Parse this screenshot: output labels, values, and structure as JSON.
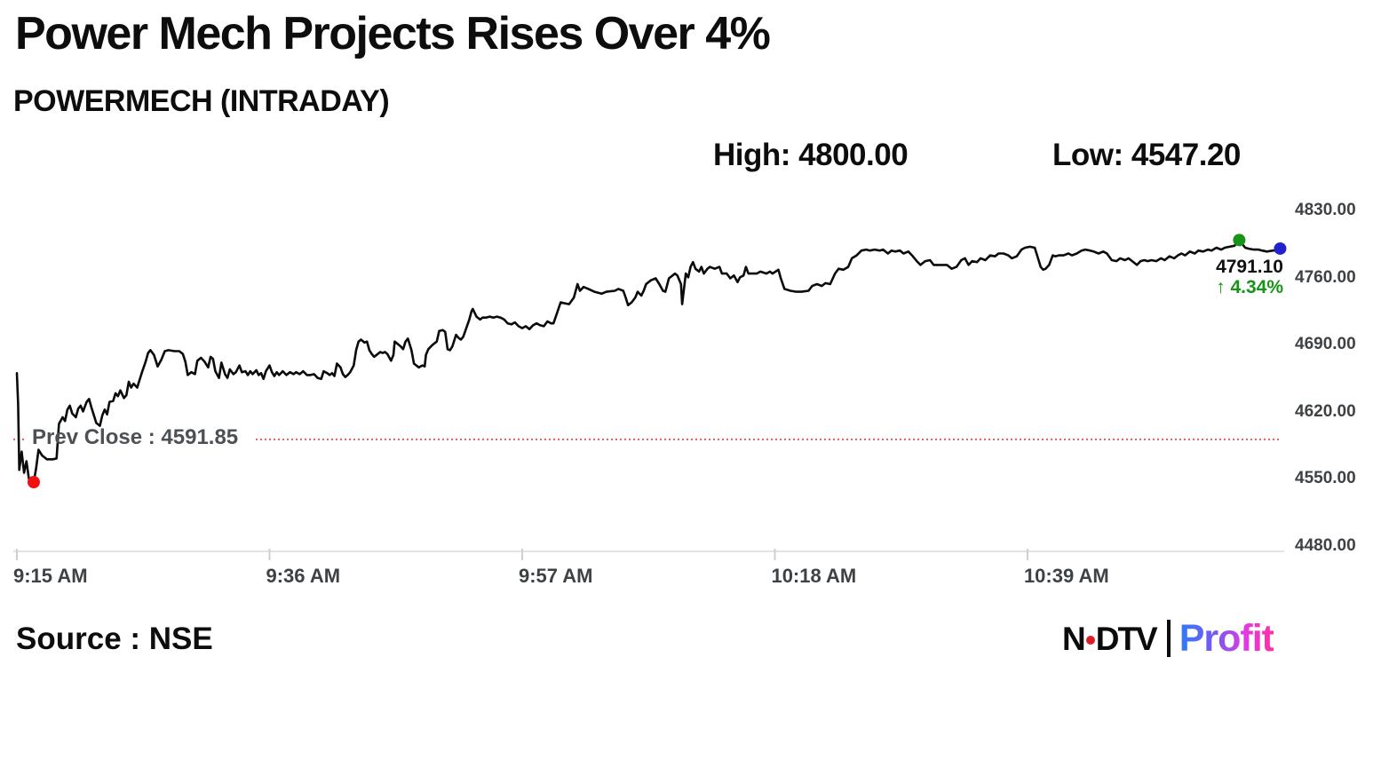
{
  "header": {
    "title": "Power Mech Projects Rises Over 4%",
    "subtitle": "POWERMECH (INTRADAY)",
    "high_label": "High: 4800.00",
    "low_label": "Low: 4547.20"
  },
  "footer": {
    "source": "Source : NSE",
    "logo": {
      "ndtv_n": "N",
      "ndtv_dtv": "DTV",
      "profit": "Profit"
    }
  },
  "colors": {
    "line": "#0b0b0b",
    "prev_close_line": "#e06060",
    "axis_line": "#e4e4e4",
    "tick": "#cfcfcf",
    "axis_text": "#3e4245",
    "low_dot": "#f21111",
    "high_dot": "#179417",
    "last_dot": "#2222cc",
    "change_green": "#179417"
  },
  "chart_data": {
    "type": "line",
    "title": "POWERMECH (INTRADAY)",
    "high": 4800.0,
    "low": 4547.2,
    "last": 4791.1,
    "last_label": "4791.10",
    "change_label": "↑ 4.34%",
    "prev_close": {
      "value": 4591.85,
      "label": "Prev Close : 4591.85"
    },
    "grid": false,
    "x_axis": {
      "unit": "minutes after 9:15 AM",
      "range_minutes": [
        0,
        105.5
      ],
      "ticks": [
        {
          "minutes": 0,
          "label": "9:15 AM"
        },
        {
          "minutes": 21,
          "label": "9:36 AM"
        },
        {
          "minutes": 42,
          "label": "9:57 AM"
        },
        {
          "minutes": 63,
          "label": "10:18 AM"
        },
        {
          "minutes": 84,
          "label": "10:39 AM"
        }
      ]
    },
    "y_axis": {
      "range": [
        4480,
        4830
      ],
      "ticks": [
        {
          "value": 4830,
          "label": "4830.00"
        },
        {
          "value": 4760,
          "label": "4760.00"
        },
        {
          "value": 4690,
          "label": "4690.00"
        },
        {
          "value": 4620,
          "label": "4620.00"
        },
        {
          "value": 4550,
          "label": "4550.00"
        },
        {
          "value": 4480,
          "label": "4480.00"
        }
      ]
    },
    "markers": {
      "low": {
        "minutes": 1.4,
        "price": 4547.2,
        "color_key": "low_dot"
      },
      "high": {
        "minutes": 101.6,
        "price": 4800.0,
        "color_key": "high_dot"
      },
      "last": {
        "minutes": 105.0,
        "price": 4791.1,
        "color_key": "last_dot"
      }
    },
    "series": [
      [
        0,
        4661
      ],
      [
        0.1,
        4629
      ],
      [
        0.2,
        4560
      ],
      [
        0.4,
        4579
      ],
      [
        0.6,
        4557
      ],
      [
        0.8,
        4569
      ],
      [
        1,
        4551
      ],
      [
        1.3,
        4545
      ],
      [
        1.4,
        4547.2
      ],
      [
        1.6,
        4562
      ],
      [
        1.8,
        4581
      ],
      [
        2.1,
        4575
      ],
      [
        2.5,
        4571
      ],
      [
        3,
        4571
      ],
      [
        3.3,
        4572
      ],
      [
        3.5,
        4608
      ],
      [
        3.8,
        4615
      ],
      [
        4,
        4611
      ],
      [
        4.2,
        4623
      ],
      [
        4.4,
        4627
      ],
      [
        4.6,
        4619
      ],
      [
        4.9,
        4615
      ],
      [
        5.1,
        4624
      ],
      [
        5.3,
        4627
      ],
      [
        5.5,
        4621
      ],
      [
        5.8,
        4631
      ],
      [
        6,
        4634
      ],
      [
        6.2,
        4625
      ],
      [
        6.4,
        4617
      ],
      [
        6.6,
        4609
      ],
      [
        6.9,
        4606
      ],
      [
        7.1,
        4617
      ],
      [
        7.3,
        4623
      ],
      [
        7.5,
        4618
      ],
      [
        7.7,
        4631
      ],
      [
        8,
        4632
      ],
      [
        8.2,
        4640
      ],
      [
        8.4,
        4637
      ],
      [
        8.6,
        4643
      ],
      [
        8.9,
        4635
      ],
      [
        9.1,
        4638
      ],
      [
        9.3,
        4652
      ],
      [
        9.5,
        4646
      ],
      [
        9.7,
        4650
      ],
      [
        10,
        4646
      ],
      [
        10.2,
        4654
      ],
      [
        10.4,
        4662
      ],
      [
        10.7,
        4673
      ],
      [
        10.9,
        4682
      ],
      [
        11.1,
        4685
      ],
      [
        11.4,
        4680
      ],
      [
        11.7,
        4668
      ],
      [
        12,
        4675
      ],
      [
        12.3,
        4684
      ],
      [
        12.6,
        4685
      ],
      [
        13.1,
        4684
      ],
      [
        13.5,
        4684
      ],
      [
        13.8,
        4681
      ],
      [
        14,
        4673
      ],
      [
        14.2,
        4659
      ],
      [
        14.5,
        4662
      ],
      [
        14.8,
        4660
      ],
      [
        15,
        4674
      ],
      [
        15.3,
        4677
      ],
      [
        15.6,
        4673
      ],
      [
        15.9,
        4667
      ],
      [
        16.1,
        4678
      ],
      [
        16.3,
        4676
      ],
      [
        16.5,
        4663
      ],
      [
        16.8,
        4656
      ],
      [
        17,
        4672
      ],
      [
        17.3,
        4660
      ],
      [
        17.5,
        4656
      ],
      [
        17.7,
        4665
      ],
      [
        18,
        4660
      ],
      [
        18.2,
        4662
      ],
      [
        18.5,
        4669
      ],
      [
        18.7,
        4662
      ],
      [
        19,
        4663
      ],
      [
        19.2,
        4659
      ],
      [
        19.4,
        4663
      ],
      [
        19.6,
        4660
      ],
      [
        19.9,
        4664
      ],
      [
        20.1,
        4659
      ],
      [
        20.3,
        4661
      ],
      [
        20.5,
        4655
      ],
      [
        20.7,
        4663
      ],
      [
        21,
        4669
      ],
      [
        21.2,
        4662
      ],
      [
        21.4,
        4658
      ],
      [
        21.6,
        4662
      ],
      [
        21.8,
        4659
      ],
      [
        22.1,
        4663
      ],
      [
        22.4,
        4659
      ],
      [
        22.7,
        4662
      ],
      [
        23,
        4660
      ],
      [
        23.2,
        4662
      ],
      [
        23.5,
        4660
      ],
      [
        23.8,
        4663
      ],
      [
        24.1,
        4659
      ],
      [
        24.4,
        4659
      ],
      [
        24.7,
        4660
      ],
      [
        25,
        4656
      ],
      [
        25.3,
        4655
      ],
      [
        25.5,
        4663
      ],
      [
        25.8,
        4661
      ],
      [
        26,
        4659
      ],
      [
        26.2,
        4661
      ],
      [
        26.4,
        4658
      ],
      [
        26.6,
        4671
      ],
      [
        26.9,
        4667
      ],
      [
        27.1,
        4660
      ],
      [
        27.3,
        4657
      ],
      [
        27.5,
        4659
      ],
      [
        27.7,
        4662
      ],
      [
        28,
        4669
      ],
      [
        28.2,
        4685
      ],
      [
        28.4,
        4694
      ],
      [
        28.6,
        4696
      ],
      [
        28.9,
        4693
      ],
      [
        29.1,
        4694
      ],
      [
        29.3,
        4685
      ],
      [
        29.5,
        4681
      ],
      [
        29.7,
        4678
      ],
      [
        30,
        4681
      ],
      [
        30.2,
        4683
      ],
      [
        30.4,
        4682
      ],
      [
        30.6,
        4683
      ],
      [
        30.8,
        4681
      ],
      [
        31.1,
        4674
      ],
      [
        31.3,
        4680
      ],
      [
        31.4,
        4694
      ],
      [
        31.7,
        4691
      ],
      [
        31.9,
        4689
      ],
      [
        32.1,
        4686
      ],
      [
        32.3,
        4694
      ],
      [
        32.5,
        4697
      ],
      [
        32.8,
        4685
      ],
      [
        33,
        4671
      ],
      [
        33.2,
        4669
      ],
      [
        33.4,
        4667
      ],
      [
        33.7,
        4669
      ],
      [
        33.9,
        4668
      ],
      [
        34,
        4680
      ],
      [
        34.2,
        4686
      ],
      [
        34.5,
        4690
      ],
      [
        34.7,
        4692
      ],
      [
        34.9,
        4694
      ],
      [
        35.1,
        4705
      ],
      [
        35.4,
        4706
      ],
      [
        35.6,
        4704
      ],
      [
        35.8,
        4686
      ],
      [
        36,
        4685
      ],
      [
        36.2,
        4689
      ],
      [
        36.5,
        4701
      ],
      [
        36.7,
        4698
      ],
      [
        36.9,
        4696
      ],
      [
        37.1,
        4699
      ],
      [
        37.3,
        4706
      ],
      [
        37.6,
        4717
      ],
      [
        37.8,
        4726
      ],
      [
        37.9,
        4728
      ],
      [
        38.2,
        4720
      ],
      [
        38.5,
        4717
      ],
      [
        38.7,
        4719
      ],
      [
        39,
        4719
      ],
      [
        39.3,
        4720
      ],
      [
        39.6,
        4719
      ],
      [
        39.9,
        4720
      ],
      [
        40.2,
        4719
      ],
      [
        40.5,
        4717
      ],
      [
        40.8,
        4713
      ],
      [
        41.1,
        4712
      ],
      [
        41.4,
        4714
      ],
      [
        41.7,
        4710
      ],
      [
        42,
        4708
      ],
      [
        42.3,
        4710
      ],
      [
        42.6,
        4707
      ],
      [
        42.9,
        4711
      ],
      [
        43.2,
        4713
      ],
      [
        43.5,
        4711
      ],
      [
        43.8,
        4710
      ],
      [
        44.1,
        4715
      ],
      [
        44.4,
        4713
      ],
      [
        44.6,
        4713
      ],
      [
        44.9,
        4724
      ],
      [
        45.2,
        4735
      ],
      [
        45.5,
        4734
      ],
      [
        45.9,
        4733
      ],
      [
        46.3,
        4740
      ],
      [
        46.6,
        4754
      ],
      [
        46.8,
        4747
      ],
      [
        47.1,
        4751
      ],
      [
        47.5,
        4749
      ],
      [
        48,
        4746
      ],
      [
        48.6,
        4744
      ],
      [
        49,
        4746
      ],
      [
        49.7,
        4747
      ],
      [
        50,
        4749
      ],
      [
        50.4,
        4747
      ],
      [
        50.6,
        4740
      ],
      [
        50.8,
        4732
      ],
      [
        51.1,
        4735
      ],
      [
        51.4,
        4740
      ],
      [
        51.6,
        4746
      ],
      [
        51.9,
        4742
      ],
      [
        52.1,
        4747
      ],
      [
        52.3,
        4754
      ],
      [
        52.7,
        4758
      ],
      [
        53.1,
        4760
      ],
      [
        53.4,
        4754
      ],
      [
        53.7,
        4747
      ],
      [
        53.9,
        4746
      ],
      [
        54.2,
        4760
      ],
      [
        54.5,
        4763
      ],
      [
        54.7,
        4765
      ],
      [
        54.9,
        4763
      ],
      [
        55.2,
        4754
      ],
      [
        55.3,
        4733
      ],
      [
        55.6,
        4765
      ],
      [
        55.8,
        4761
      ],
      [
        56,
        4772
      ],
      [
        56.2,
        4777
      ],
      [
        56.4,
        4770
      ],
      [
        56.7,
        4767
      ],
      [
        56.9,
        4772
      ],
      [
        57.1,
        4765
      ],
      [
        57.4,
        4770
      ],
      [
        57.6,
        4772
      ],
      [
        58,
        4770
      ],
      [
        58.4,
        4772
      ],
      [
        58.6,
        4765
      ],
      [
        59,
        4765
      ],
      [
        59.3,
        4760
      ],
      [
        59.6,
        4763
      ],
      [
        59.9,
        4756
      ],
      [
        60.1,
        4761
      ],
      [
        60.4,
        4763
      ],
      [
        60.6,
        4772
      ],
      [
        60.8,
        4765
      ],
      [
        61.1,
        4765
      ],
      [
        61.5,
        4765
      ],
      [
        61.8,
        4767
      ],
      [
        62.3,
        4765
      ],
      [
        62.6,
        4767
      ],
      [
        62.8,
        4765
      ],
      [
        63.3,
        4769
      ],
      [
        63.5,
        4760
      ],
      [
        63.8,
        4749
      ],
      [
        64.3,
        4747
      ],
      [
        64.8,
        4746
      ],
      [
        65.2,
        4746
      ],
      [
        65.8,
        4747
      ],
      [
        66.1,
        4752
      ],
      [
        66.5,
        4754
      ],
      [
        66.9,
        4752
      ],
      [
        67.2,
        4755
      ],
      [
        67.6,
        4754
      ],
      [
        68,
        4765
      ],
      [
        68.3,
        4770
      ],
      [
        68.7,
        4769
      ],
      [
        69.1,
        4772
      ],
      [
        69.4,
        4781
      ],
      [
        69.8,
        4784
      ],
      [
        70.2,
        4789
      ],
      [
        70.6,
        4790
      ],
      [
        70.9,
        4789
      ],
      [
        71.3,
        4790
      ],
      [
        71.7,
        4789
      ],
      [
        72,
        4790
      ],
      [
        72.4,
        4786
      ],
      [
        72.7,
        4789
      ],
      [
        73,
        4788
      ],
      [
        73.4,
        4789
      ],
      [
        73.7,
        4786
      ],
      [
        74.1,
        4788
      ],
      [
        74.4,
        4784
      ],
      [
        74.8,
        4778
      ],
      [
        75.1,
        4774
      ],
      [
        75.5,
        4778
      ],
      [
        75.9,
        4779
      ],
      [
        76.2,
        4774
      ],
      [
        76.6,
        4774
      ],
      [
        77,
        4774
      ],
      [
        77.3,
        4774
      ],
      [
        77.7,
        4770
      ],
      [
        78.1,
        4772
      ],
      [
        78.5,
        4779
      ],
      [
        78.8,
        4781
      ],
      [
        79.1,
        4774
      ],
      [
        79.4,
        4778
      ],
      [
        79.8,
        4777
      ],
      [
        80.1,
        4781
      ],
      [
        80.5,
        4779
      ],
      [
        80.9,
        4784
      ],
      [
        81.3,
        4783
      ],
      [
        81.6,
        4786
      ],
      [
        82,
        4786
      ],
      [
        82.4,
        4784
      ],
      [
        82.7,
        4781
      ],
      [
        83.1,
        4783
      ],
      [
        83.5,
        4790
      ],
      [
        83.8,
        4792
      ],
      [
        84.2,
        4793
      ],
      [
        84.6,
        4792
      ],
      [
        84.8,
        4784
      ],
      [
        85.1,
        4772
      ],
      [
        85.3,
        4769
      ],
      [
        85.5,
        4770
      ],
      [
        85.8,
        4774
      ],
      [
        86.1,
        4784
      ],
      [
        86.3,
        4783
      ],
      [
        86.6,
        4784
      ],
      [
        87,
        4784
      ],
      [
        87.4,
        4786
      ],
      [
        87.7,
        4784
      ],
      [
        88.1,
        4786
      ],
      [
        88.5,
        4789
      ],
      [
        88.8,
        4790
      ],
      [
        89.2,
        4789
      ],
      [
        89.5,
        4788
      ],
      [
        89.9,
        4786
      ],
      [
        90.3,
        4788
      ],
      [
        90.6,
        4786
      ],
      [
        91,
        4779
      ],
      [
        91.4,
        4778
      ],
      [
        91.7,
        4781
      ],
      [
        92.1,
        4779
      ],
      [
        92.4,
        4781
      ],
      [
        92.7,
        4778
      ],
      [
        93.1,
        4774
      ],
      [
        93.4,
        4778
      ],
      [
        93.7,
        4779
      ],
      [
        94,
        4778
      ],
      [
        94.3,
        4779
      ],
      [
        94.7,
        4778
      ],
      [
        95.1,
        4781
      ],
      [
        95.4,
        4779
      ],
      [
        95.8,
        4783
      ],
      [
        96.2,
        4781
      ],
      [
        96.5,
        4784
      ],
      [
        96.8,
        4786
      ],
      [
        97.1,
        4784
      ],
      [
        97.5,
        4788
      ],
      [
        97.9,
        4786
      ],
      [
        98.2,
        4789
      ],
      [
        98.6,
        4788
      ],
      [
        99,
        4790
      ],
      [
        99.3,
        4789
      ],
      [
        99.7,
        4792
      ],
      [
        100.1,
        4790
      ],
      [
        100.4,
        4792
      ],
      [
        100.8,
        4793
      ],
      [
        101.2,
        4794
      ],
      [
        101.6,
        4800
      ],
      [
        102.1,
        4792
      ],
      [
        102.4,
        4791
      ],
      [
        102.8,
        4790
      ],
      [
        103.2,
        4790
      ],
      [
        103.5,
        4789
      ],
      [
        103.9,
        4788
      ],
      [
        104.4,
        4789
      ],
      [
        104.7,
        4789
      ],
      [
        105,
        4791.1
      ]
    ]
  }
}
